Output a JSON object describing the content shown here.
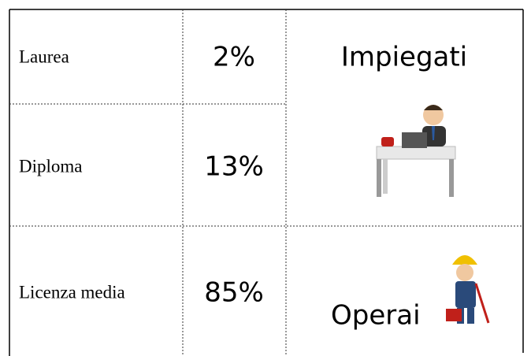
{
  "table": {
    "rows": [
      [
        "Laurea",
        "2%"
      ],
      [
        "Diploma",
        "13%"
      ],
      [
        "Licenza media",
        "85%"
      ]
    ],
    "groups": [
      "Impiegati",
      "Operai"
    ]
  }
}
